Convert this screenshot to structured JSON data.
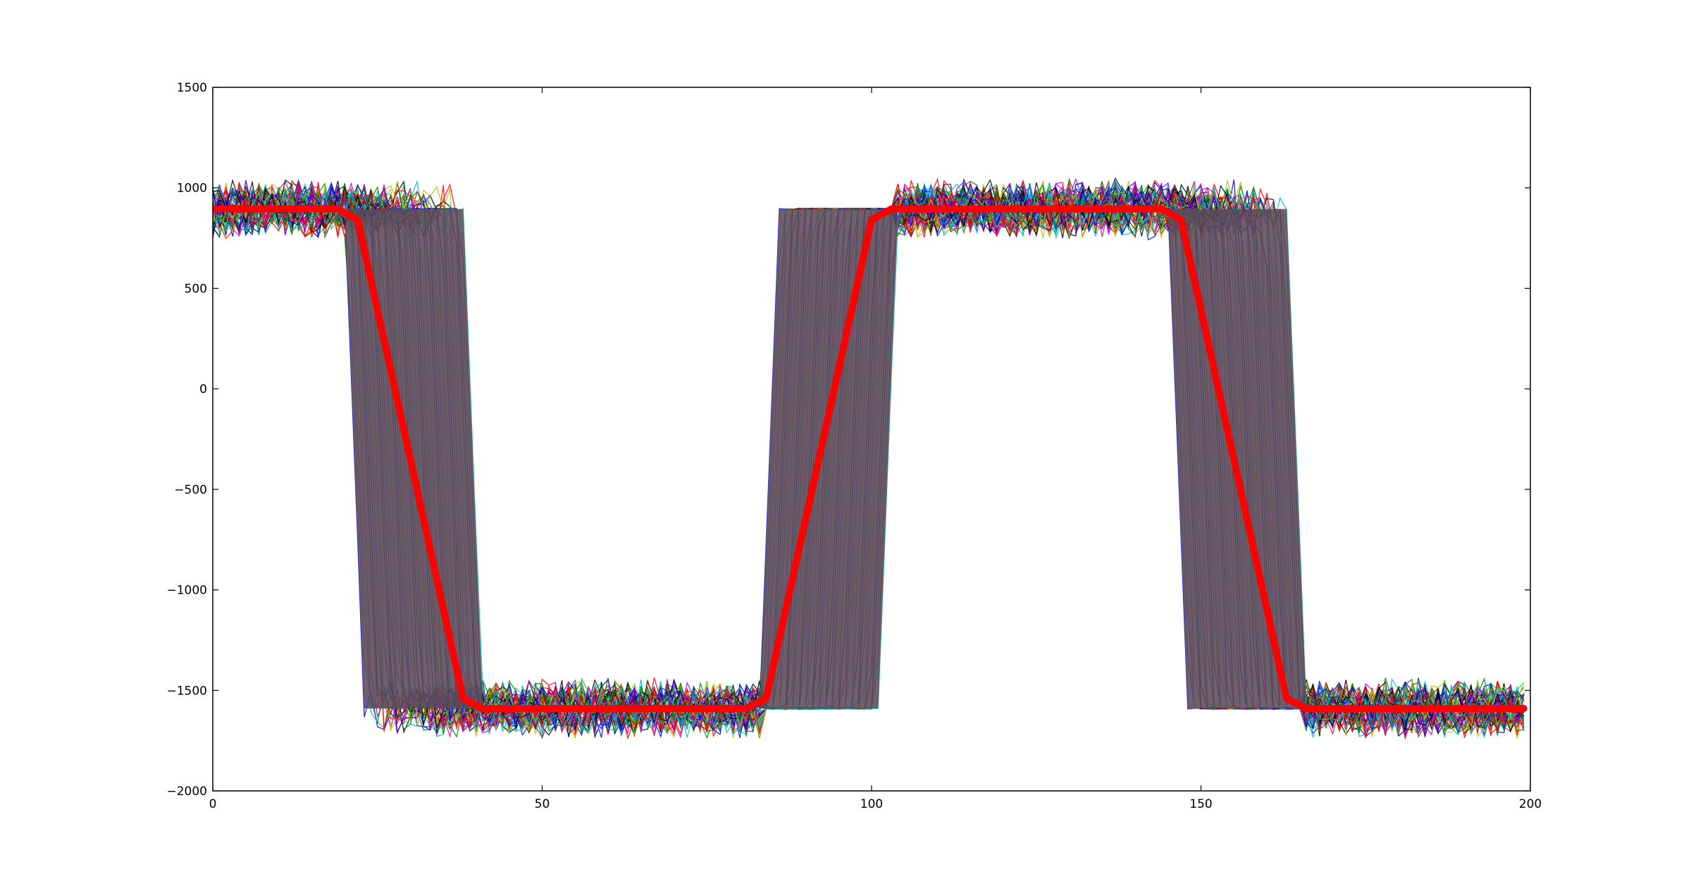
{
  "chart_data": {
    "type": "line",
    "title": "",
    "xlabel": "",
    "ylabel": "",
    "xlim": [
      0,
      200
    ],
    "ylim": [
      -2000,
      1500
    ],
    "grid": false,
    "legend": "none",
    "x_ticks": [
      0,
      50,
      100,
      150,
      200
    ],
    "x_tick_labels": [
      "0",
      "50",
      "100",
      "150",
      "200"
    ],
    "y_ticks": [
      1500,
      1000,
      500,
      0,
      -500,
      -1000,
      -1500,
      -2000
    ],
    "y_tick_labels": [
      "1500",
      "1000",
      "500",
      "0",
      "−500",
      "−1000",
      "−1500",
      "−2000"
    ],
    "ensemble": {
      "description_values": {
        "high_level": 895,
        "low_level": -1590,
        "noise_amplitude": 110,
        "n_series": 60,
        "transition_1_start_range": [
          20,
          38
        ],
        "transition_2_start_range": [
          83,
          101
        ],
        "transition_3_start_range": [
          145,
          163
        ],
        "transition_width": 3
      },
      "colors": [
        "#0000ff",
        "#008000",
        "#ff0000",
        "#00bfbf",
        "#bf00bf",
        "#bfbf00",
        "#000000"
      ],
      "fill_color": "#5a4a5a"
    },
    "series": [
      {
        "color": "#ff0000",
        "x": [
          0,
          19,
          22,
          38,
          41,
          81,
          84,
          100,
          103,
          144,
          147,
          163,
          166,
          199
        ],
        "values": [
          895,
          895,
          840,
          -1540,
          -1590,
          -1590,
          -1540,
          840,
          895,
          895,
          840,
          -1540,
          -1590,
          -1590
        ]
      }
    ]
  }
}
